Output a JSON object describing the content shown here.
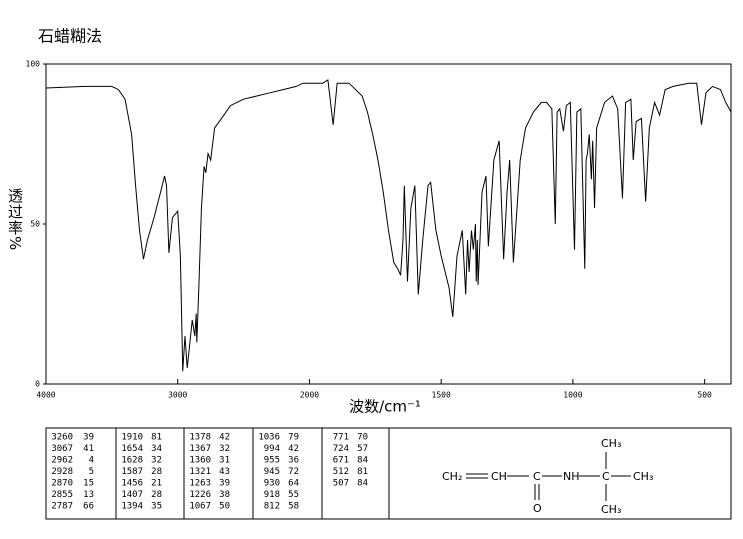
{
  "chart_data": {
    "type": "line",
    "title": "石蜡糊法",
    "x_label": "波数/cm⁻¹",
    "y_label": "透过率%",
    "xlim": [
      4000,
      400
    ],
    "ylim": [
      0,
      100
    ],
    "xticks": [
      4000,
      3000,
      2000,
      1500,
      1000,
      500
    ],
    "yticks": [
      0,
      50,
      100
    ],
    "x": [
      4000,
      3700,
      3500,
      3450,
      3400,
      3350,
      3320,
      3290,
      3260,
      3230,
      3180,
      3130,
      3100,
      3085,
      3067,
      3040,
      3000,
      2980,
      2962,
      2945,
      2928,
      2910,
      2890,
      2870,
      2860,
      2855,
      2840,
      2820,
      2800,
      2787,
      2770,
      2750,
      2720,
      2650,
      2600,
      2500,
      2400,
      2300,
      2200,
      2100,
      2050,
      2000,
      1950,
      1930,
      1910,
      1895,
      1850,
      1800,
      1780,
      1760,
      1740,
      1720,
      1700,
      1680,
      1665,
      1654,
      1645,
      1640,
      1628,
      1615,
      1600,
      1587,
      1570,
      1550,
      1540,
      1520,
      1500,
      1470,
      1456,
      1440,
      1420,
      1407,
      1400,
      1394,
      1385,
      1378,
      1370,
      1367,
      1363,
      1360,
      1345,
      1330,
      1321,
      1300,
      1280,
      1263,
      1250,
      1240,
      1226,
      1200,
      1180,
      1150,
      1120,
      1100,
      1080,
      1067,
      1060,
      1050,
      1036,
      1025,
      1010,
      994,
      985,
      970,
      955,
      950,
      945,
      938,
      930,
      925,
      918,
      910,
      880,
      850,
      830,
      812,
      800,
      780,
      771,
      760,
      740,
      724,
      710,
      690,
      671,
      650,
      620,
      560,
      530,
      512,
      507,
      495,
      470,
      440,
      420,
      400
    ],
    "series": [
      {
        "color": "#000000",
        "values": [
          92.5,
          93,
          93,
          92,
          89,
          78,
          62,
          48,
          39,
          45,
          52,
          60,
          65,
          62,
          41,
          52,
          54,
          40,
          4,
          15,
          5,
          12,
          20,
          15,
          22,
          13,
          30,
          55,
          68,
          66,
          72,
          70,
          80,
          84,
          87,
          89,
          90,
          91,
          92,
          93,
          94,
          94,
          94,
          95,
          81,
          94,
          94,
          90,
          85,
          78,
          70,
          60,
          48,
          38,
          36,
          34,
          45,
          62,
          32,
          55,
          62,
          28,
          45,
          62,
          63,
          48,
          40,
          30,
          21,
          40,
          48,
          28,
          45,
          35,
          48,
          42,
          50,
          32,
          45,
          31,
          60,
          65,
          43,
          70,
          76,
          39,
          60,
          70,
          38,
          70,
          80,
          85,
          88,
          88,
          86,
          50,
          85,
          86,
          79,
          87,
          88,
          42,
          85,
          86,
          36,
          70,
          72,
          78,
          64,
          76,
          55,
          80,
          88,
          90,
          86,
          58,
          88,
          89,
          70,
          82,
          83,
          57,
          80,
          88,
          84,
          92,
          93,
          94,
          94,
          81,
          84,
          91,
          93,
          92,
          88,
          85
        ]
      }
    ]
  },
  "peak_table": [
    [
      [
        3260,
        39
      ],
      [
        3067,
        41
      ],
      [
        2962,
        4
      ],
      [
        2928,
        5
      ],
      [
        2870,
        15
      ],
      [
        2855,
        13
      ],
      [
        2787,
        66
      ]
    ],
    [
      [
        1910,
        81
      ],
      [
        1654,
        34
      ],
      [
        1628,
        32
      ],
      [
        1587,
        28
      ],
      [
        1456,
        21
      ],
      [
        1407,
        28
      ],
      [
        1394,
        35
      ]
    ],
    [
      [
        1378,
        42
      ],
      [
        1367,
        32
      ],
      [
        1360,
        31
      ],
      [
        1321,
        43
      ],
      [
        1263,
        39
      ],
      [
        1226,
        38
      ],
      [
        1067,
        50
      ]
    ],
    [
      [
        1036,
        79
      ],
      [
        994,
        42
      ],
      [
        955,
        36
      ],
      [
        945,
        72
      ],
      [
        930,
        64
      ],
      [
        918,
        55
      ],
      [
        812,
        58
      ]
    ],
    [
      [
        771,
        70
      ],
      [
        724,
        57
      ],
      [
        671,
        84
      ],
      [
        512,
        81
      ],
      [
        507,
        84
      ]
    ]
  ],
  "structure": {
    "labels": [
      "CH₂",
      "CH",
      "C",
      "NH",
      "C",
      "CH₃",
      "O",
      "CH₃",
      "CH₃"
    ]
  }
}
